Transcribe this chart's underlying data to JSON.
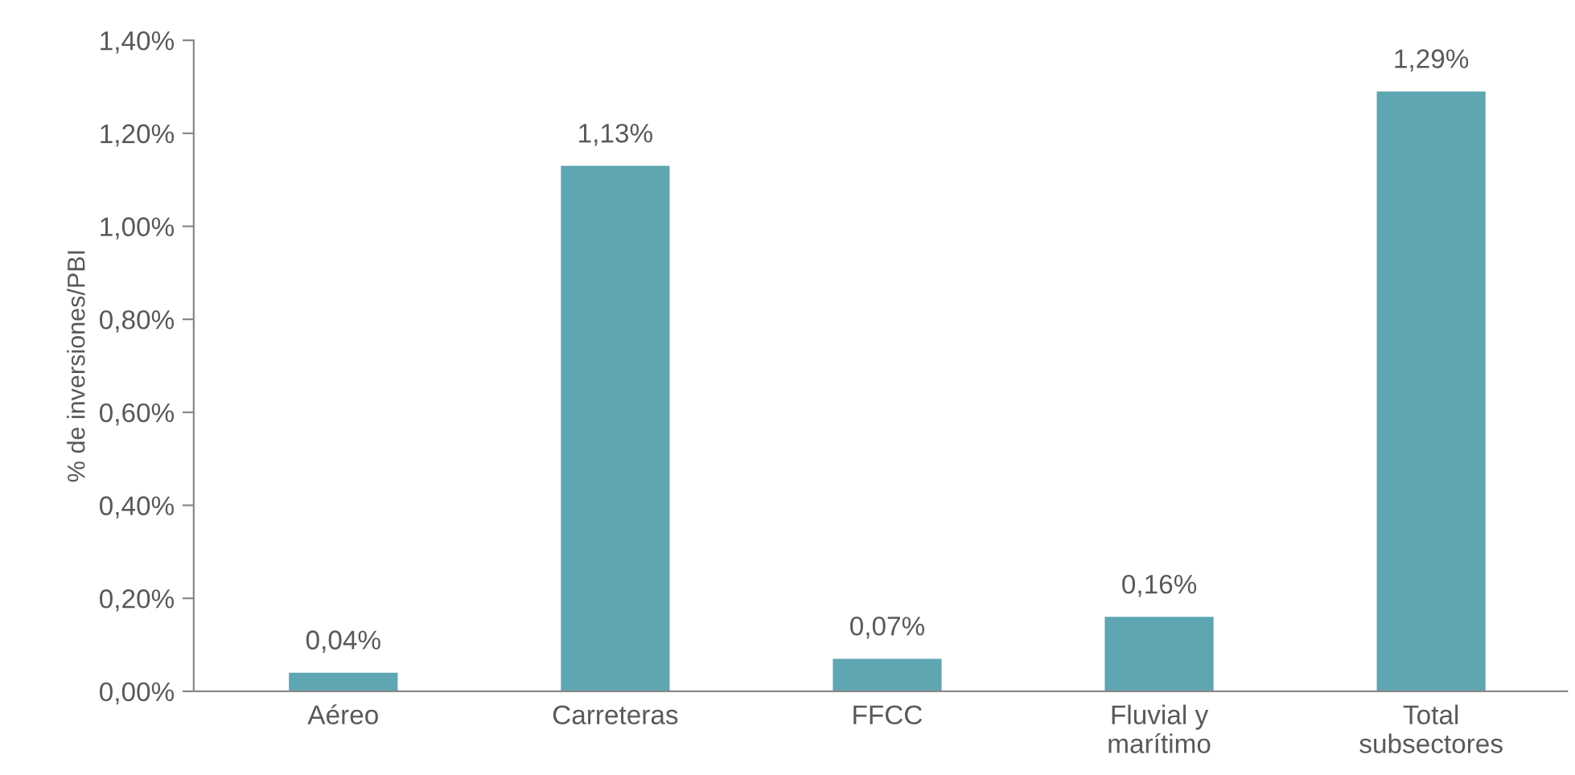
{
  "chart_data": {
    "type": "bar",
    "ylabel": "% de inversiones/PBI",
    "categories": [
      "Aéreo",
      "Carreteras",
      "FFCC",
      "Fluvial y\nmarítimo",
      "Total\nsubsectores"
    ],
    "values": [
      0.04,
      1.13,
      0.07,
      0.16,
      1.29
    ],
    "value_labels": [
      "0,04%",
      "1,13%",
      "0,07%",
      "0,16%",
      "1,29%"
    ],
    "color": "#5fa6b3",
    "ylim": [
      0,
      1.4
    ],
    "yticks": [
      {
        "value": 0,
        "label": "0,00%"
      },
      {
        "value": 0.2,
        "label": "0,20%"
      },
      {
        "value": 0.4,
        "label": "0,40%"
      },
      {
        "value": 0.6,
        "label": "0,60%"
      },
      {
        "value": 0.8,
        "label": "0,80%"
      },
      {
        "value": 1.0,
        "label": "1,00%"
      },
      {
        "value": 1.2,
        "label": "1,20%"
      },
      {
        "value": 1.4,
        "label": "1,40%"
      }
    ],
    "grid": false,
    "legend": false
  }
}
